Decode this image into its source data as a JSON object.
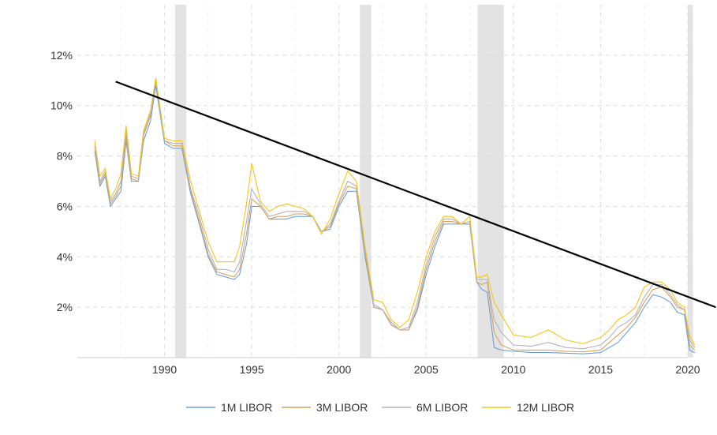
{
  "chart_data": {
    "type": "line",
    "title": "",
    "xlabel": "",
    "ylabel": "",
    "xlim": [
      1985.0,
      2020.0
    ],
    "ylim": [
      0,
      14
    ],
    "grid": true,
    "legend_position": "bottom",
    "x_ticks": [
      "1990",
      "1995",
      "2000",
      "2005",
      "2010",
      "2015",
      "2020"
    ],
    "x_tick_values": [
      1990,
      1995,
      2000,
      2005,
      2010,
      2015,
      2020
    ],
    "y_ticks": [
      "2%",
      "4%",
      "6%",
      "8%",
      "10%",
      "12%"
    ],
    "y_tick_values": [
      2,
      4,
      6,
      8,
      10,
      12
    ],
    "recessions": [
      [
        1990.6,
        1991.25
      ],
      [
        2001.2,
        2001.85
      ],
      [
        2007.95,
        2009.45
      ],
      [
        2020.0,
        2020.3
      ]
    ],
    "trendline": {
      "x": [
        1987.2,
        2021.6
      ],
      "y": [
        10.95,
        2.0
      ],
      "color": "#000000"
    },
    "series": [
      {
        "name": "1M LIBOR",
        "color": "#6a9fd8",
        "x": [
          1986.0,
          1986.3,
          1986.6,
          1986.9,
          1987.2,
          1987.5,
          1987.8,
          1988.1,
          1988.5,
          1988.8,
          1989.2,
          1989.5,
          1990.0,
          1990.5,
          1991.0,
          1991.5,
          1992.0,
          1992.5,
          1993.0,
          1993.5,
          1994.0,
          1994.3,
          1994.7,
          1995.0,
          1995.5,
          1996.0,
          1996.5,
          1997.0,
          1997.5,
          1998.0,
          1998.5,
          1999.0,
          1999.5,
          2000.0,
          2000.5,
          2001.0,
          2001.5,
          2002.0,
          2002.5,
          2003.0,
          2003.5,
          2004.0,
          2004.5,
          2005.0,
          2005.5,
          2006.0,
          2006.5,
          2007.0,
          2007.5,
          2007.9,
          2008.2,
          2008.5,
          2008.9,
          2009.3,
          2010.0,
          2011.0,
          2012.0,
          2013.0,
          2014.0,
          2015.0,
          2015.5,
          2016.0,
          2016.5,
          2017.0,
          2017.5,
          2018.0,
          2018.5,
          2019.0,
          2019.4,
          2019.8,
          2020.1,
          2020.4
        ],
        "values": [
          8.2,
          6.8,
          7.2,
          6.0,
          6.3,
          6.6,
          8.6,
          7.0,
          7.0,
          8.6,
          9.4,
          10.8,
          8.5,
          8.3,
          8.3,
          6.5,
          5.3,
          4.0,
          3.3,
          3.2,
          3.1,
          3.3,
          4.5,
          6.0,
          6.0,
          5.5,
          5.5,
          5.5,
          5.6,
          5.6,
          5.6,
          5.0,
          5.1,
          6.0,
          6.6,
          6.6,
          4.0,
          2.0,
          1.9,
          1.3,
          1.1,
          1.1,
          1.9,
          3.3,
          4.4,
          5.3,
          5.3,
          5.3,
          5.3,
          3.0,
          2.7,
          2.6,
          0.4,
          0.3,
          0.25,
          0.2,
          0.2,
          0.18,
          0.15,
          0.2,
          0.4,
          0.6,
          1.0,
          1.4,
          2.0,
          2.5,
          2.4,
          2.2,
          1.8,
          1.7,
          0.3,
          0.2
        ]
      },
      {
        "name": "3M LIBOR",
        "color": "#d9a15c",
        "x": [
          1986.0,
          1986.3,
          1986.6,
          1986.9,
          1987.2,
          1987.5,
          1987.8,
          1988.1,
          1988.5,
          1988.8,
          1989.2,
          1989.5,
          1990.0,
          1990.5,
          1991.0,
          1991.5,
          1992.0,
          1992.5,
          1993.0,
          1993.5,
          1994.0,
          1994.3,
          1994.7,
          1995.0,
          1995.5,
          1996.0,
          1996.5,
          1997.0,
          1997.5,
          1998.0,
          1998.5,
          1999.0,
          1999.5,
          2000.0,
          2000.5,
          2001.0,
          2001.5,
          2002.0,
          2002.5,
          2003.0,
          2003.5,
          2004.0,
          2004.5,
          2005.0,
          2005.5,
          2006.0,
          2006.5,
          2007.0,
          2007.5,
          2007.9,
          2008.2,
          2008.5,
          2008.9,
          2009.3,
          2010.0,
          2011.0,
          2012.0,
          2013.0,
          2014.0,
          2015.0,
          2015.5,
          2016.0,
          2016.5,
          2017.0,
          2017.5,
          2018.0,
          2018.5,
          2019.0,
          2019.4,
          2019.8,
          2020.1,
          2020.4
        ],
        "values": [
          8.4,
          6.9,
          7.3,
          6.1,
          6.4,
          6.8,
          8.8,
          7.1,
          7.0,
          8.8,
          9.6,
          11.0,
          8.6,
          8.4,
          8.4,
          6.6,
          5.4,
          4.1,
          3.4,
          3.3,
          3.2,
          3.5,
          4.9,
          6.3,
          6.0,
          5.5,
          5.6,
          5.6,
          5.7,
          5.7,
          5.6,
          5.0,
          5.2,
          6.1,
          6.8,
          6.7,
          4.2,
          2.0,
          1.9,
          1.3,
          1.1,
          1.1,
          2.0,
          3.5,
          4.6,
          5.4,
          5.4,
          5.3,
          5.4,
          3.0,
          2.9,
          3.0,
          1.0,
          0.5,
          0.3,
          0.3,
          0.3,
          0.25,
          0.23,
          0.3,
          0.6,
          0.9,
          1.2,
          1.6,
          2.2,
          2.7,
          2.8,
          2.4,
          2.0,
          1.9,
          0.5,
          0.3
        ]
      },
      {
        "name": "6M LIBOR",
        "color": "#b3b0bf",
        "x": [
          1986.0,
          1986.3,
          1986.6,
          1986.9,
          1987.2,
          1987.5,
          1987.8,
          1988.1,
          1988.5,
          1988.8,
          1989.2,
          1989.5,
          1990.0,
          1990.5,
          1991.0,
          1991.5,
          1992.0,
          1992.5,
          1993.0,
          1993.5,
          1994.0,
          1994.3,
          1994.7,
          1995.0,
          1995.5,
          1996.0,
          1996.5,
          1997.0,
          1997.5,
          1998.0,
          1998.5,
          1999.0,
          1999.5,
          2000.0,
          2000.5,
          2001.0,
          2001.5,
          2002.0,
          2002.5,
          2003.0,
          2003.5,
          2004.0,
          2004.5,
          2005.0,
          2005.5,
          2006.0,
          2006.5,
          2007.0,
          2007.5,
          2007.9,
          2008.2,
          2008.5,
          2008.9,
          2009.3,
          2010.0,
          2011.0,
          2012.0,
          2013.0,
          2014.0,
          2015.0,
          2015.5,
          2016.0,
          2016.5,
          2017.0,
          2017.5,
          2018.0,
          2018.5,
          2019.0,
          2019.4,
          2019.8,
          2020.1,
          2020.4
        ],
        "values": [
          8.5,
          7.0,
          7.4,
          6.2,
          6.5,
          7.0,
          9.0,
          7.2,
          7.1,
          8.9,
          9.7,
          11.0,
          8.6,
          8.5,
          8.5,
          6.7,
          5.6,
          4.3,
          3.5,
          3.5,
          3.4,
          3.8,
          5.4,
          6.7,
          6.1,
          5.6,
          5.7,
          5.8,
          5.8,
          5.8,
          5.6,
          5.0,
          5.3,
          6.2,
          7.0,
          6.8,
          4.3,
          2.1,
          1.9,
          1.4,
          1.1,
          1.2,
          2.2,
          3.7,
          4.8,
          5.5,
          5.5,
          5.3,
          5.4,
          3.1,
          3.1,
          3.1,
          1.5,
          1.0,
          0.5,
          0.45,
          0.6,
          0.4,
          0.35,
          0.5,
          0.8,
          1.2,
          1.4,
          1.7,
          2.4,
          2.9,
          2.9,
          2.5,
          2.1,
          1.9,
          0.7,
          0.4
        ]
      },
      {
        "name": "12M LIBOR",
        "color": "#f5c518",
        "x": [
          1986.0,
          1986.3,
          1986.6,
          1986.9,
          1987.2,
          1987.5,
          1987.8,
          1988.1,
          1988.5,
          1988.8,
          1989.2,
          1989.5,
          1990.0,
          1990.5,
          1991.0,
          1991.5,
          1992.0,
          1992.5,
          1993.0,
          1993.5,
          1994.0,
          1994.3,
          1994.7,
          1995.0,
          1995.5,
          1996.0,
          1996.5,
          1997.0,
          1997.5,
          1998.0,
          1998.5,
          1999.0,
          1999.5,
          2000.0,
          2000.5,
          2001.0,
          2001.5,
          2002.0,
          2002.5,
          2003.0,
          2003.5,
          2004.0,
          2004.5,
          2005.0,
          2005.5,
          2006.0,
          2006.5,
          2007.0,
          2007.5,
          2007.9,
          2008.2,
          2008.5,
          2008.9,
          2009.3,
          2010.0,
          2011.0,
          2012.0,
          2013.0,
          2014.0,
          2015.0,
          2015.5,
          2016.0,
          2016.5,
          2017.0,
          2017.5,
          2018.0,
          2018.5,
          2019.0,
          2019.4,
          2019.8,
          2020.1,
          2020.4
        ],
        "values": [
          8.6,
          7.2,
          7.5,
          6.3,
          6.7,
          7.3,
          9.2,
          7.3,
          7.2,
          9.0,
          9.8,
          11.1,
          8.7,
          8.6,
          8.6,
          7.0,
          5.8,
          4.6,
          3.8,
          3.8,
          3.8,
          4.4,
          6.1,
          7.7,
          6.2,
          5.8,
          6.0,
          6.1,
          6.0,
          5.9,
          5.6,
          4.9,
          5.5,
          6.5,
          7.4,
          7.0,
          4.4,
          2.3,
          2.2,
          1.5,
          1.2,
          1.5,
          2.6,
          4.0,
          5.0,
          5.6,
          5.6,
          5.3,
          5.6,
          3.2,
          3.2,
          3.3,
          2.2,
          1.7,
          0.9,
          0.8,
          1.1,
          0.7,
          0.55,
          0.8,
          1.1,
          1.5,
          1.7,
          2.0,
          2.8,
          3.0,
          3.0,
          2.7,
          2.2,
          2.0,
          0.9,
          0.5
        ]
      }
    ]
  }
}
